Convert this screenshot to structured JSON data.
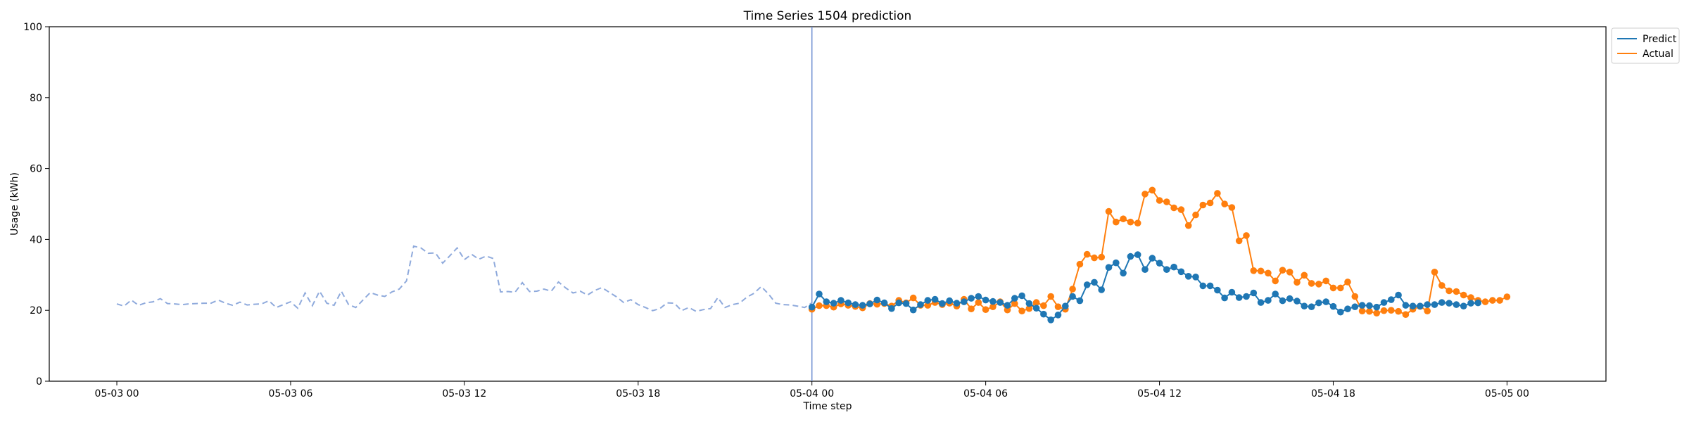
{
  "chart_data": {
    "type": "line",
    "title": "Time Series 1504 prediction",
    "xlabel": "Time step",
    "ylabel": "Usage (kWh)",
    "ylim": [
      0,
      100
    ],
    "yticks": [
      0,
      20,
      40,
      60,
      80,
      100
    ],
    "xlim": [
      "2023-05-02T21:40",
      "2023-05-05T03:25"
    ],
    "xticks": [
      {
        "t": "2023-05-03T00:00",
        "label": "05-03 00"
      },
      {
        "t": "2023-05-03T06:00",
        "label": "05-03 06"
      },
      {
        "t": "2023-05-03T12:00",
        "label": "05-03 12"
      },
      {
        "t": "2023-05-03T18:00",
        "label": "05-03 18"
      },
      {
        "t": "2023-05-04T00:00",
        "label": "05-04 00"
      },
      {
        "t": "2023-05-04T06:00",
        "label": "05-04 06"
      },
      {
        "t": "2023-05-04T12:00",
        "label": "05-04 12"
      },
      {
        "t": "2023-05-04T18:00",
        "label": "05-04 18"
      },
      {
        "t": "2023-05-05T00:00",
        "label": "05-05 00"
      }
    ],
    "grid": false,
    "legend": {
      "placement": "outside top-right",
      "entries": [
        "Predict",
        "Actual"
      ]
    },
    "forecast_start": "2023-05-04T00:00",
    "colors": {
      "predict": "#1f77b4",
      "actual": "#ff7f0e",
      "history": "#8faadc",
      "divider": "#6f8fd0"
    },
    "history": {
      "name": "",
      "style": "dashed",
      "start": "2023-05-03T00:00",
      "step_minutes": 15,
      "values": [
        21.8,
        21.2,
        22.9,
        21.4,
        22.1,
        22.4,
        23.3,
        21.9,
        21.8,
        21.6,
        21.8,
        21.9,
        22.0,
        22.0,
        22.9,
        22.0,
        21.4,
        22.3,
        21.5,
        21.7,
        21.8,
        22.7,
        20.8,
        21.6,
        22.4,
        20.6,
        24.9,
        21.3,
        25.4,
        22.0,
        21.4,
        25.4,
        21.6,
        20.8,
        22.9,
        25.0,
        24.3,
        23.9,
        25.2,
        26.0,
        28.3,
        38.1,
        37.6,
        36.1,
        36.2,
        33.3,
        35.4,
        37.6,
        34.3,
        35.8,
        34.4,
        35.3,
        34.6,
        25.2,
        25.3,
        25.1,
        27.8,
        25.3,
        25.4,
        26.0,
        25.4,
        28.0,
        26.3,
        24.9,
        25.4,
        24.3,
        25.6,
        26.4,
        25.1,
        23.8,
        22.2,
        23.0,
        21.6,
        20.8,
        19.9,
        20.5,
        22.1,
        22.0,
        19.9,
        20.8,
        19.7,
        20.2,
        20.5,
        23.6,
        20.8,
        21.6,
        22.0,
        23.7,
        24.8,
        26.7,
        24.6,
        22.0,
        21.6,
        21.5,
        21.2,
        20.8,
        22.1
      ]
    },
    "series": [
      {
        "name": "Predict",
        "style": "line+markers",
        "start": "2023-05-04T00:00",
        "step_minutes": 15,
        "values": [
          20.9,
          24.6,
          22.4,
          22.0,
          22.8,
          22.1,
          21.6,
          21.4,
          21.8,
          22.9,
          22.1,
          20.5,
          22.1,
          21.9,
          20.1,
          21.6,
          22.8,
          23.1,
          21.9,
          22.7,
          22.0,
          22.4,
          23.4,
          23.9,
          22.9,
          22.5,
          22.2,
          21.4,
          23.4,
          24.1,
          21.9,
          20.6,
          18.9,
          17.3,
          18.7,
          21.2,
          23.9,
          22.7,
          27.2,
          27.9,
          25.8,
          32.1,
          33.4,
          30.5,
          35.2,
          35.7,
          31.5,
          34.7,
          33.3,
          31.5,
          32.2,
          30.9,
          29.6,
          29.4,
          26.9,
          26.9,
          25.7,
          23.5,
          25.1,
          23.6,
          23.9,
          24.9,
          22.2,
          22.8,
          24.6,
          22.7,
          23.3,
          22.6,
          21.2,
          21.0,
          22.1,
          22.4,
          21.1,
          19.5,
          20.4,
          21.0,
          21.4,
          21.3,
          20.9,
          22.2,
          23.0,
          24.3,
          21.4,
          21.2,
          21.2,
          21.6,
          21.6,
          22.2,
          22.0,
          21.6,
          21.2,
          22.0,
          22.1
        ]
      },
      {
        "name": "Actual",
        "style": "line+markers",
        "start": "2023-05-04T00:00",
        "step_minutes": 15,
        "values": [
          20.3,
          21.3,
          21.3,
          20.9,
          21.8,
          21.4,
          21.1,
          20.7,
          21.9,
          21.7,
          21.9,
          21.2,
          22.8,
          22.1,
          23.5,
          21.4,
          21.4,
          22.2,
          21.6,
          22.0,
          21.2,
          23.1,
          20.4,
          22.2,
          20.2,
          21.0,
          22.4,
          20.1,
          21.9,
          19.8,
          20.5,
          22.2,
          21.3,
          23.9,
          21.0,
          20.3,
          26.0,
          33.0,
          35.8,
          34.8,
          35.0,
          47.9,
          44.9,
          45.8,
          44.9,
          44.6,
          52.8,
          53.9,
          51.0,
          50.6,
          48.9,
          48.4,
          43.9,
          46.9,
          49.7,
          50.3,
          53.0,
          50.0,
          49.0,
          39.6,
          41.1,
          31.2,
          31.1,
          30.5,
          28.3,
          31.3,
          30.8,
          27.9,
          29.9,
          27.6,
          27.4,
          28.3,
          26.3,
          26.3,
          28.0,
          23.9,
          19.8,
          19.7,
          19.2,
          19.9,
          20.0,
          19.7,
          18.8,
          20.3,
          21.1,
          19.8,
          30.8,
          27.0,
          25.5,
          25.3,
          24.3,
          23.6,
          22.8,
          22.4,
          22.8,
          22.8,
          23.8
        ]
      }
    ]
  }
}
